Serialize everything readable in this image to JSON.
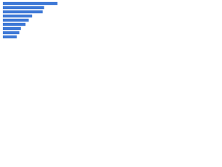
{
  "chart_data": {
    "type": "bar",
    "orientation": "horizontal",
    "categories": [
      null,
      null,
      null,
      null,
      null,
      null,
      null,
      null,
      null
    ],
    "values": [
      82,
      62,
      60,
      44,
      39,
      34,
      27,
      25,
      21
    ],
    "color": "#3d78d6",
    "xlim": [
      0,
      100
    ]
  }
}
